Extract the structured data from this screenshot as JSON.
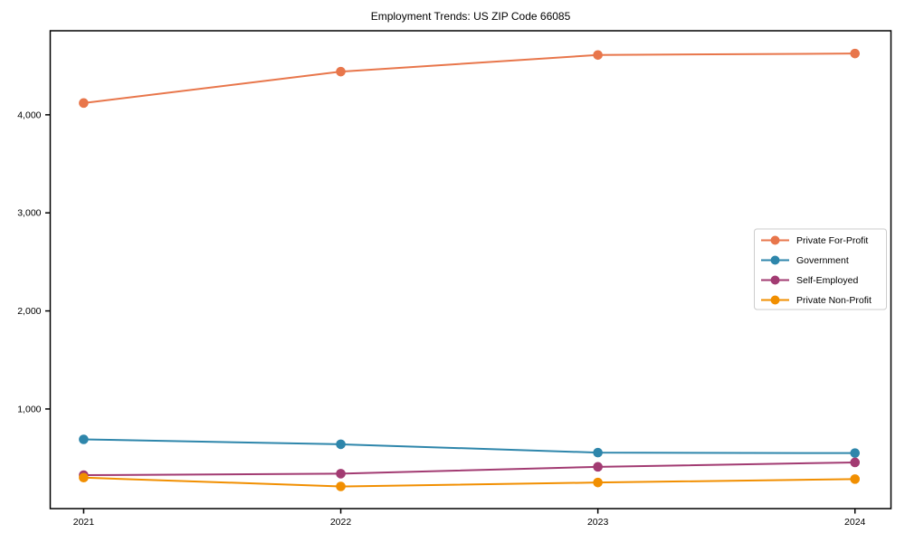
{
  "chart_data": {
    "type": "line",
    "title": "Employment Trends: US ZIP Code 66085",
    "x": [
      2021,
      2022,
      2023,
      2024
    ],
    "xtick_labels": [
      "2021",
      "2022",
      "2023",
      "2024"
    ],
    "yticks": [
      1000,
      2000,
      3000,
      4000
    ],
    "ytick_labels": [
      "1,000",
      "2,000",
      "3,000",
      "4,000"
    ],
    "series": [
      {
        "name": "Private For-Profit",
        "color": "#E8764B",
        "values": [
          4120,
          4440,
          4610,
          4625
        ]
      },
      {
        "name": "Government",
        "color": "#2E86AB",
        "values": [
          690,
          640,
          555,
          550
        ]
      },
      {
        "name": "Self-Employed",
        "color": "#A23B72",
        "values": [
          325,
          340,
          410,
          455
        ]
      },
      {
        "name": "Private Non-Profit",
        "color": "#F18F01",
        "values": [
          300,
          210,
          250,
          285
        ]
      }
    ],
    "xlabel": "",
    "ylabel": "",
    "xlim": [
      2020.87,
      2024.14
    ],
    "ylim": [
      -16,
      4857
    ],
    "grid": false,
    "legend_position": "right-inside",
    "marker": "circle",
    "background_color": "#ffffff",
    "axis_color": "#000000",
    "legend_border_color": "#cccccc"
  }
}
